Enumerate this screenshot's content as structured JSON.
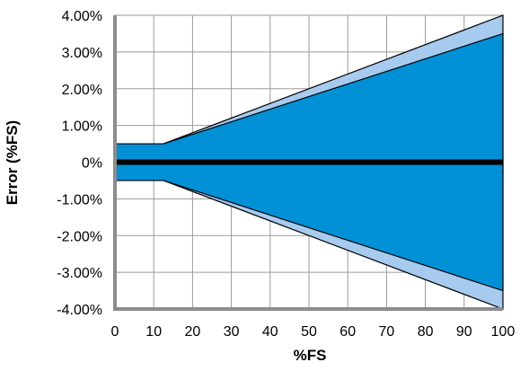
{
  "chart_data": {
    "type": "area",
    "xlabel": "%FS",
    "ylabel": "Error (%FS)",
    "xlim": [
      0,
      100
    ],
    "ylim": [
      -4,
      4
    ],
    "x_ticks": [
      0,
      10,
      20,
      30,
      40,
      50,
      60,
      70,
      80,
      90,
      100
    ],
    "x_tick_labels": [
      "0",
      "10",
      "20",
      "30",
      "40",
      "50",
      "60",
      "70",
      "80",
      "90",
      "100"
    ],
    "y_ticks": [
      4,
      3,
      2,
      1,
      0,
      -1,
      -2,
      -3,
      -4
    ],
    "y_tick_labels": [
      "4.00%",
      "3.00%",
      "2.00%",
      "1.00%",
      "0%",
      "-1.00%",
      "-2.00%",
      "-3.00%",
      "-4.00%"
    ],
    "grid": true,
    "series": [
      {
        "color": "#a6cbee",
        "x": [
          0,
          12.5,
          100
        ],
        "upper": [
          0.5,
          0.5,
          4.0
        ],
        "lower": [
          -0.5,
          -0.5,
          -4.0
        ]
      },
      {
        "color": "#0090d6",
        "x": [
          0,
          12.5,
          100
        ],
        "upper": [
          0.5,
          0.5,
          3.5
        ],
        "lower": [
          -0.5,
          -0.5,
          -3.5
        ]
      }
    ],
    "reference_line": {
      "y": 0,
      "color": "#000000"
    }
  }
}
